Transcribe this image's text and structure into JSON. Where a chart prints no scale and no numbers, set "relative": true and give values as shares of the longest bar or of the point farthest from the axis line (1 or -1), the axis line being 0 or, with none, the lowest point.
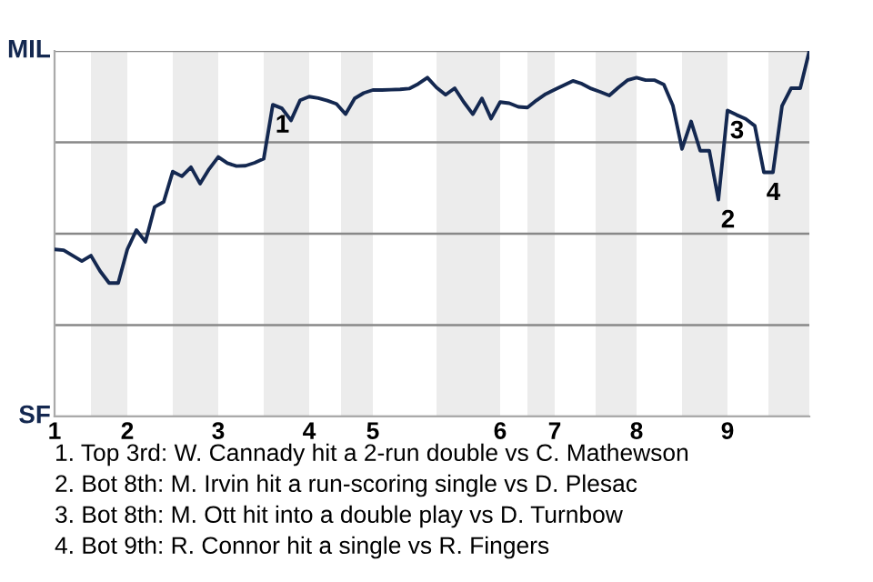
{
  "chart_data": {
    "type": "line",
    "relative": true,
    "categories": [
      "1",
      null,
      null,
      null,
      null,
      null,
      null,
      null,
      "2",
      null,
      null,
      null,
      null,
      null,
      null,
      null,
      null,
      null,
      "3",
      null,
      null,
      null,
      null,
      null,
      null,
      null,
      null,
      null,
      "4",
      null,
      null,
      null,
      null,
      null,
      null,
      "5",
      null,
      null,
      null,
      null,
      null,
      null,
      null,
      null,
      null,
      null,
      null,
      null,
      null,
      "6",
      null,
      null,
      null,
      null,
      null,
      "7",
      null,
      null,
      null,
      null,
      null,
      null,
      null,
      null,
      "8",
      null,
      null,
      null,
      null,
      null,
      null,
      null,
      null,
      null,
      "9",
      null,
      null,
      null,
      null,
      null,
      null,
      null,
      null,
      null
    ],
    "series": [
      {
        "color": "#142850",
        "values": [
          0.457,
          0.455,
          0.44,
          0.425,
          0.44,
          0.398,
          0.365,
          0.365,
          0.457,
          0.51,
          0.478,
          0.573,
          0.587,
          0.67,
          0.657,
          0.682,
          0.637,
          0.677,
          0.71,
          0.693,
          0.685,
          0.686,
          0.694,
          0.705,
          0.853,
          0.843,
          0.81,
          0.865,
          0.875,
          0.871,
          0.864,
          0.855,
          0.827,
          0.87,
          0.885,
          0.893,
          0.893,
          0.894,
          0.895,
          0.897,
          0.91,
          0.927,
          0.9,
          0.88,
          0.898,
          0.86,
          0.827,
          0.87,
          0.815,
          0.86,
          0.857,
          0.847,
          0.845,
          0.865,
          0.882,
          0.894,
          0.906,
          0.918,
          0.91,
          0.897,
          0.888,
          0.878,
          0.9,
          0.92,
          0.927,
          0.92,
          0.92,
          0.908,
          0.85,
          0.732,
          0.807,
          0.727,
          0.727,
          0.593,
          0.837,
          0.825,
          0.814,
          0.795,
          0.668,
          0.668,
          0.85,
          0.898,
          0.898,
          1
        ]
      }
    ],
    "grid": "y",
    "annotations": [
      "MIL",
      "SF",
      {
        "text": "1",
        "y": 0.853
      },
      {
        "text": "2",
        "y": 0.593
      },
      {
        "text": "3",
        "y": 0.837
      },
      {
        "text": "4",
        "y": 0.668
      },
      "1. Top 3rd: W. Cannady hit a 2-run double vs C. Mathewson",
      "2. Bot 8th: M. Irvin hit a run-scoring single vs D. Plesac",
      "3. Bot 8th: M. Ott hit into a double play vs D. Turnbow",
      "4. Bot 9th: R. Connor hit a single vs R. Fingers"
    ]
  }
}
